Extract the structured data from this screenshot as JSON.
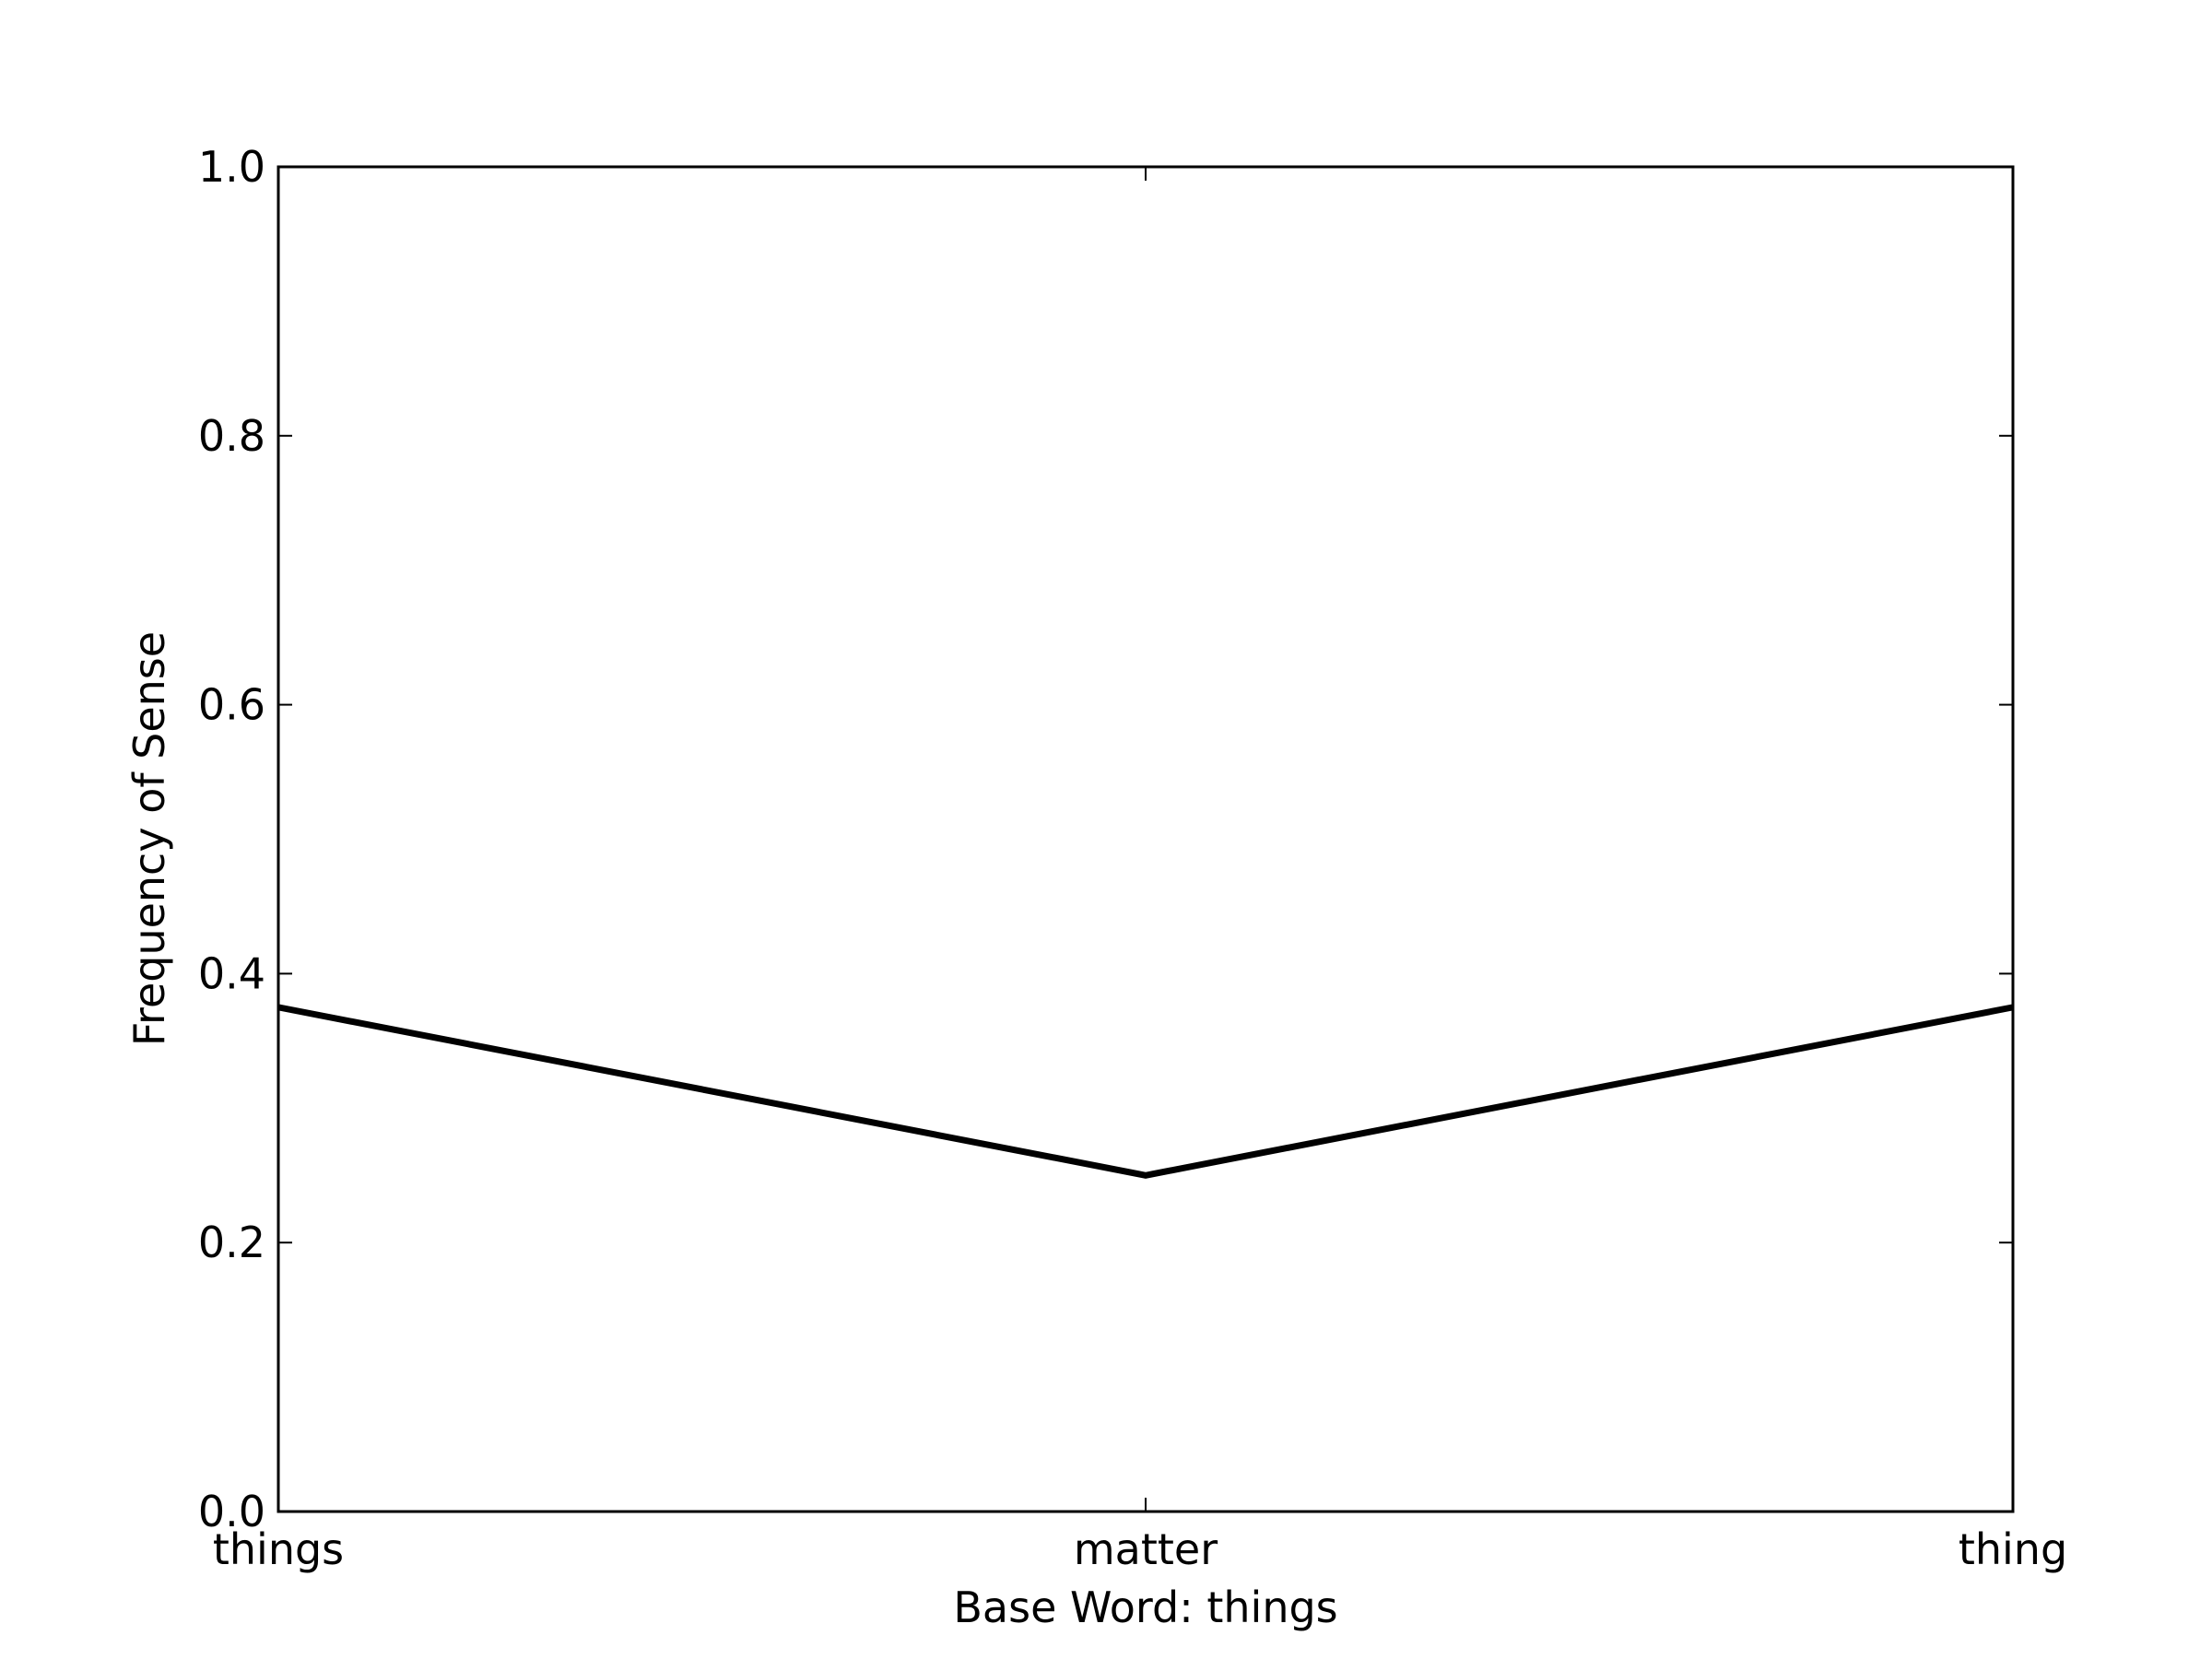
{
  "chart_data": {
    "type": "line",
    "categories": [
      "things",
      "matter",
      "thing"
    ],
    "series": [
      {
        "values": [
          0.375,
          0.25,
          0.375
        ]
      }
    ],
    "title": "",
    "xlabel": "Base Word: things",
    "ylabel": "Frequency of Sense",
    "ylim": [
      0.0,
      1.0
    ],
    "yticks": [
      "0.0",
      "0.2",
      "0.4",
      "0.6",
      "0.8",
      "1.0"
    ],
    "grid": false,
    "line_color": "#000000"
  }
}
